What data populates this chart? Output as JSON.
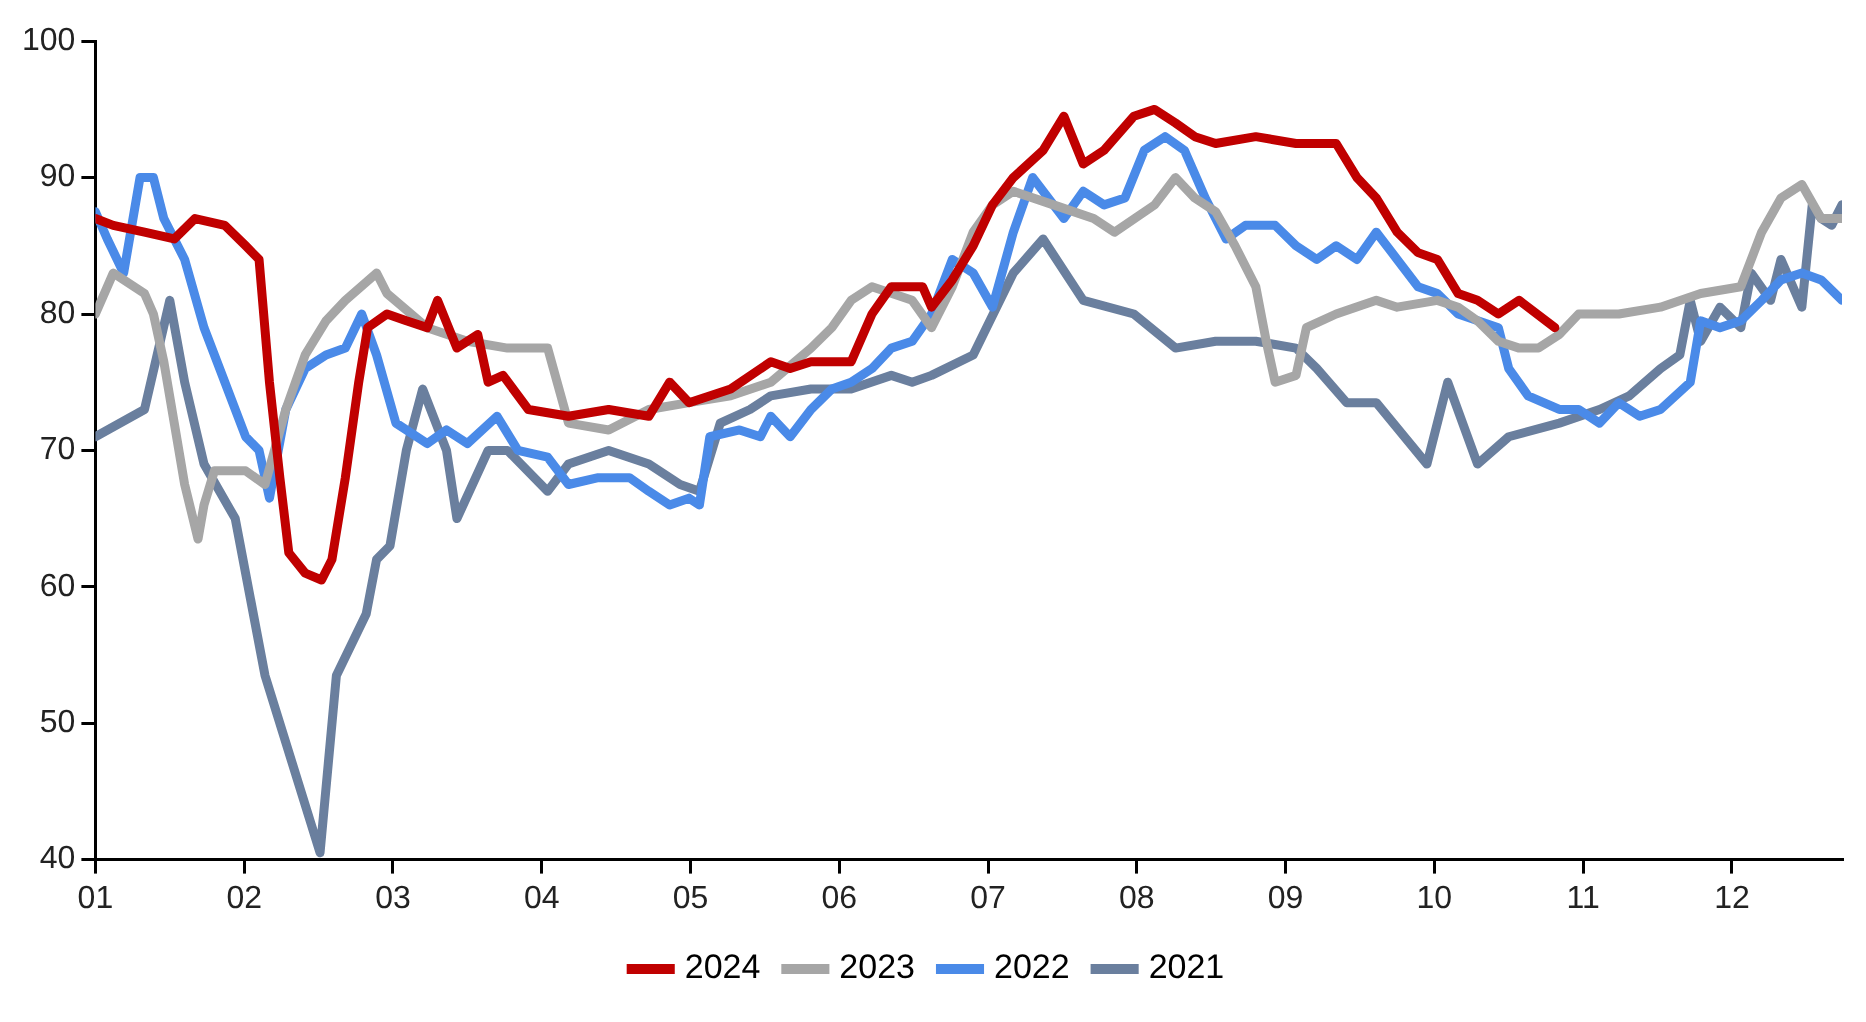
{
  "chart_data": {
    "type": "line",
    "xlim": [
      1,
      12.74
    ],
    "xticks": [
      {
        "value": 1,
        "label": "01"
      },
      {
        "value": 2,
        "label": "02"
      },
      {
        "value": 3,
        "label": "03"
      },
      {
        "value": 4,
        "label": "04"
      },
      {
        "value": 5,
        "label": "05"
      },
      {
        "value": 6,
        "label": "06"
      },
      {
        "value": 7,
        "label": "07"
      },
      {
        "value": 8,
        "label": "08"
      },
      {
        "value": 9,
        "label": "09"
      },
      {
        "value": 10,
        "label": "10"
      },
      {
        "value": 11,
        "label": "11"
      },
      {
        "value": 12,
        "label": "12"
      }
    ],
    "ylim": [
      40,
      100
    ],
    "yticks": [
      40,
      50,
      60,
      70,
      80,
      90,
      100
    ],
    "grid": false,
    "legend": "bottom",
    "marker": "none",
    "line_style": "solid",
    "series": [
      {
        "name": "2024",
        "color": "#c00000",
        "x": [
          1.0,
          1.12,
          1.33,
          1.53,
          1.67,
          1.87,
          2.01,
          2.1,
          2.17,
          2.24,
          2.3,
          2.41,
          2.52,
          2.59,
          2.68,
          2.77,
          2.83,
          2.96,
          3.09,
          3.23,
          3.3,
          3.43,
          3.57,
          3.64,
          3.74,
          3.91,
          4.18,
          4.45,
          4.72,
          4.86,
          4.99,
          5.27,
          5.54,
          5.67,
          5.81,
          6.08,
          6.22,
          6.35,
          6.56,
          6.62,
          6.76,
          6.9,
          7.03,
          7.17,
          7.37,
          7.51,
          7.64,
          7.78,
          7.98,
          8.12,
          8.26,
          8.39,
          8.53,
          8.8,
          9.07,
          9.34,
          9.48,
          9.61,
          9.75,
          9.89,
          10.02,
          10.16,
          10.29,
          10.43,
          10.57,
          10.81
        ],
        "values": [
          87,
          86.5,
          86,
          85.5,
          87,
          86.5,
          85,
          84,
          75,
          68,
          62.5,
          61,
          60.5,
          62,
          68,
          75,
          79,
          80,
          79.5,
          79,
          81,
          77.5,
          78.5,
          75,
          75.5,
          73,
          72.5,
          73,
          72.5,
          75,
          73.5,
          74.5,
          76.5,
          76,
          76.5,
          76.5,
          80,
          82,
          82,
          80.5,
          82.5,
          85,
          88,
          90,
          92,
          94.5,
          91,
          92,
          94.5,
          95,
          94,
          93,
          92.5,
          93,
          92.5,
          92.5,
          90,
          88.5,
          86,
          84.5,
          84,
          81.5,
          81,
          80,
          81,
          79
        ]
      },
      {
        "name": "2023",
        "color": "#a6a6a6",
        "x": [
          1.0,
          1.12,
          1.33,
          1.39,
          1.46,
          1.53,
          1.6,
          1.69,
          1.73,
          1.8,
          2.01,
          2.14,
          2.28,
          2.41,
          2.55,
          2.68,
          2.89,
          2.96,
          3.23,
          3.5,
          3.77,
          4.04,
          4.18,
          4.45,
          4.72,
          4.99,
          5.27,
          5.54,
          5.81,
          5.95,
          6.08,
          6.22,
          6.49,
          6.62,
          6.76,
          6.9,
          7.03,
          7.17,
          7.44,
          7.71,
          7.85,
          8.12,
          8.26,
          8.39,
          8.53,
          8.66,
          8.8,
          8.87,
          8.93,
          9.07,
          9.14,
          9.34,
          9.61,
          9.75,
          10.02,
          10.16,
          10.29,
          10.43,
          10.57,
          10.7,
          10.84,
          10.97,
          11.24,
          11.52,
          11.79,
          12.06,
          12.2,
          12.33,
          12.47,
          12.6,
          12.74
        ],
        "values": [
          80,
          83,
          81.5,
          80,
          76.5,
          72,
          67.5,
          63.5,
          66,
          68.5,
          68.5,
          67.5,
          73,
          77,
          79.5,
          81,
          83,
          81.5,
          79,
          78,
          77.5,
          77.5,
          72,
          71.5,
          73,
          73.5,
          74,
          75,
          77.5,
          79,
          81,
          82,
          81,
          79,
          82,
          86,
          88,
          89,
          88,
          87,
          86,
          88,
          90,
          88.5,
          87.5,
          85,
          82,
          78,
          75,
          75.5,
          79,
          80,
          81,
          80.5,
          81,
          80.5,
          79.5,
          78,
          77.5,
          77.5,
          78.5,
          80,
          80,
          80.5,
          81.5,
          82,
          86,
          88.5,
          89.5,
          87,
          87
        ]
      },
      {
        "name": "2022",
        "color": "#4a8ae8",
        "x": [
          1.0,
          1.08,
          1.19,
          1.3,
          1.39,
          1.46,
          1.6,
          1.73,
          1.87,
          2.01,
          2.1,
          2.17,
          2.28,
          2.41,
          2.55,
          2.68,
          2.79,
          2.89,
          3.02,
          3.23,
          3.36,
          3.5,
          3.7,
          3.84,
          4.04,
          4.18,
          4.38,
          4.59,
          4.72,
          4.86,
          4.99,
          5.06,
          5.13,
          5.33,
          5.47,
          5.54,
          5.67,
          5.81,
          5.95,
          6.08,
          6.22,
          6.35,
          6.49,
          6.62,
          6.76,
          6.9,
          7.03,
          7.17,
          7.3,
          7.51,
          7.64,
          7.78,
          7.92,
          8.05,
          8.19,
          8.32,
          8.46,
          8.6,
          8.73,
          8.93,
          9.07,
          9.21,
          9.34,
          9.48,
          9.61,
          9.75,
          9.89,
          10.02,
          10.16,
          10.43,
          10.5,
          10.63,
          10.84,
          10.97,
          11.11,
          11.24,
          11.38,
          11.52,
          11.72,
          11.79,
          11.92,
          12.06,
          12.2,
          12.33,
          12.47,
          12.6,
          12.74
        ],
        "values": [
          87.5,
          85.5,
          83,
          90,
          90,
          87,
          84,
          79,
          75,
          71,
          70,
          66.5,
          73,
          76,
          77,
          77.5,
          80,
          77,
          72,
          70.5,
          71.5,
          70.5,
          72.5,
          70,
          69.5,
          67.5,
          68,
          68,
          67,
          66,
          66.5,
          66,
          71,
          71.5,
          71,
          72.5,
          71,
          73,
          74.5,
          75,
          76,
          77.5,
          78,
          80,
          84,
          83,
          80.5,
          86,
          90,
          87,
          89,
          88,
          88.5,
          92,
          93,
          92,
          88.5,
          85.5,
          86.5,
          86.5,
          85,
          84,
          85,
          84,
          86,
          84,
          82,
          81.5,
          80,
          79,
          76,
          74,
          73,
          73,
          72,
          73.5,
          72.5,
          73,
          75,
          79.5,
          79,
          79.5,
          81,
          82.5,
          83,
          82.5,
          81
        ]
      },
      {
        "name": "2021",
        "color": "#6a7f9e",
        "x": [
          1.0,
          1.33,
          1.5,
          1.6,
          1.73,
          1.94,
          2.14,
          2.51,
          2.62,
          2.82,
          2.89,
          2.98,
          3.09,
          3.2,
          3.36,
          3.43,
          3.64,
          3.77,
          4.04,
          4.18,
          4.45,
          4.72,
          4.93,
          5.06,
          5.2,
          5.4,
          5.54,
          5.81,
          6.08,
          6.35,
          6.49,
          6.62,
          6.9,
          7.17,
          7.37,
          7.64,
          7.98,
          8.26,
          8.53,
          8.8,
          9.07,
          9.21,
          9.41,
          9.61,
          9.95,
          10.09,
          10.29,
          10.5,
          10.84,
          11.11,
          11.31,
          11.52,
          11.65,
          11.72,
          11.79,
          11.92,
          12.06,
          12.13,
          12.26,
          12.33,
          12.47,
          12.54,
          12.6,
          12.67,
          12.74
        ],
        "values": [
          71,
          73,
          81,
          75,
          69,
          65,
          53.5,
          40.5,
          53.5,
          58,
          62,
          63,
          70,
          74.5,
          70,
          65,
          70,
          70,
          67,
          69,
          70,
          69,
          67.5,
          67,
          72,
          73,
          74,
          74.5,
          74.5,
          75.5,
          75,
          75.5,
          77,
          83,
          85.5,
          81,
          80,
          77.5,
          78,
          78,
          77.5,
          76,
          73.5,
          73.5,
          69,
          75,
          69,
          71,
          72,
          73,
          74,
          76,
          77,
          81,
          78,
          80.5,
          79,
          83,
          81,
          84,
          80.5,
          88,
          87,
          86.5,
          88
        ]
      }
    ]
  }
}
